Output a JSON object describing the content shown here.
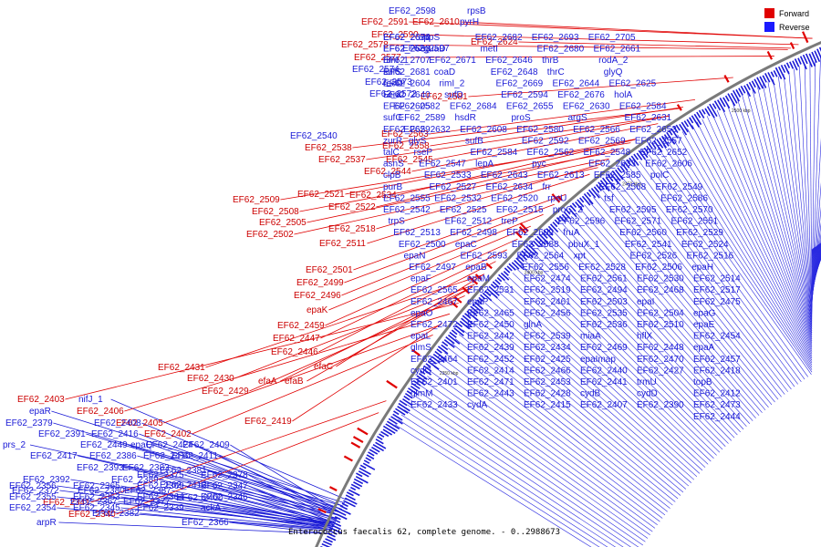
{
  "caption": "Enterococcus faecalis 62, complete genome. - 0..2988673",
  "legend": [
    {
      "label": "Forward",
      "color": "#e00000"
    },
    {
      "label": "Reverse",
      "color": "#1a1aff"
    }
  ],
  "ticks": [
    "2650 kbp",
    "2600 kbp",
    "2550 kbp",
    "2500 kbp",
    "2450 kbp",
    "2400 kbp",
    "2350 kbp"
  ],
  "forward_labels": [
    "EF62_2591",
    "EF62_2610",
    "EF62_2590",
    "EF62_2624",
    "EF62_2578",
    "EF62_2577",
    "EF62_2581",
    "EF62_2563",
    "EF62_2558",
    "EF62_2537",
    "EF62_2545",
    "EF62_2544",
    "EF62_2538",
    "EF62_2521",
    "EF62_2534",
    "EF62_2509",
    "EF62_2522",
    "EF62_2508",
    "EF62_2505",
    "EF62_2518",
    "EF62_2502",
    "EF62_2511",
    "EF62_2501",
    "EF62_2499",
    "EF62_2496",
    "epaK",
    "EF62_2459",
    "EF62_2447",
    "EF62_2446",
    "efaC",
    "EF62_2431",
    "EF62_2430",
    "efaA",
    "efaB",
    "EF62_2429",
    "EF62_2403",
    "EF62_2406",
    "EF62_2405",
    "EF62_2419",
    "EF62_2402",
    "EF62_2341",
    "EF62_2340"
  ],
  "reverse_labels": [
    "EF62_2598",
    "rpsB",
    "pyrH",
    "EF62_2597",
    "EF62_2574",
    "EF62_2573",
    "EF62_2572",
    "EF62_2540",
    "EF62_2705",
    "EF62_2693",
    "EF62_2682",
    "uppS",
    "EF62_2674",
    "EF62_2690",
    "EF62_2661",
    "EF62_2680",
    "metI",
    "guaD",
    "EF62_2660",
    "EF62_2683",
    "rodA_2",
    "thrB",
    "EF62_2646",
    "EF62_2671",
    "rimI_1",
    "EF62_2707",
    "glyQ",
    "thrC",
    "EF62_2648",
    "coaD",
    "EF62_2681",
    "sufS",
    "EF62_2625",
    "EF62_2644",
    "EF62_2669",
    "rimI_2",
    "EF62_2604",
    "recO",
    "holA",
    "EF62_2676",
    "EF62_2594",
    "sufD",
    "era",
    "EF62_2640",
    "EF62_2584",
    "EF62_2630",
    "EF62_2655",
    "EF62_2684",
    "EF62_2582",
    "EF62_2605",
    "EF62_2631",
    "argS",
    "proS",
    "hsdR",
    "EF62_2589",
    "sufC",
    "EF62_2653",
    "EF62_2566",
    "EF62_2580",
    "EF62_2608",
    "EF62_2632",
    "EF62_2659",
    "EF62_2557",
    "EF62_2569",
    "EF62_2592",
    "sufB",
    "glyS",
    "zurR",
    "EF62_2652",
    "EF62_2548",
    "EF62_2562",
    "EF62_2584",
    "rseP",
    "talC",
    "EF62_2606",
    "EF62_2633",
    "pyc",
    "lepA",
    "EF62_2547",
    "asnS",
    "polC",
    "EF62_2585",
    "EF62_2613",
    "EF62_2643",
    "EF62_2533",
    "clpB",
    "EF62_2549",
    "EF62_2568",
    "frr",
    "EF62_2634",
    "EF62_2527",
    "purB",
    "EF62_2586",
    "tsf",
    "rpsU",
    "EF62_2520",
    "EF62_2532",
    "EF62_2555",
    "EF62_2570",
    "EF62_2595",
    "proC_2",
    "EF62_2515",
    "EF62_2525",
    "EF62_2542",
    "EF62_2551",
    "EF62_2571",
    "EF62_2596",
    "treP",
    "EF62_2512",
    "trpS",
    "EF62_2529",
    "EF62_2560",
    "fruA",
    "EF62_2609",
    "EF62_2498",
    "EF62_2513",
    "EF62_2524",
    "EF62_2541",
    "pbuX_1",
    "EF62_2588",
    "epaC",
    "EF62_2500",
    "EF62_2516",
    "EF62_2526",
    "xpt",
    "EF62_2564",
    "EF62_2593",
    "epaN",
    "epaH",
    "EF62_2506",
    "EF62_2528",
    "EF62_2556",
    "epaB",
    "EF62_2497",
    "EF62_2514",
    "EF62_2530",
    "EF62_2561",
    "EF62_2474",
    "epaM",
    "epaF",
    "EF62_2517",
    "EF62_2468",
    "EF62_2494",
    "EF62_2519",
    "EF62_2531",
    "EF62_2565",
    "EF62_2475",
    "epaI",
    "EF62_2503",
    "EF62_2461",
    "epaP",
    "EF62_2467",
    "epaG",
    "EF62_2504",
    "EF62_2535",
    "EF62_2456",
    "EF62_2465",
    "epaO",
    "epaE",
    "EF62_2510",
    "EF62_2536",
    "glnA",
    "EF62_2450",
    "EF62_2472",
    "EF62_2454",
    "hflX",
    "miaA",
    "EF62_2539",
    "EF62_2442",
    "epaL",
    "epaA",
    "EF62_2448",
    "EF62_2469",
    "EF62_2434",
    "EF62_2439",
    "glmS",
    "EF62_2457",
    "EF62_2470",
    "epaImap",
    "EF62_2425",
    "EF62_2452",
    "EF62_2464",
    "EF62_2418",
    "EF62_2427",
    "EF62_2440",
    "EF62_2466",
    "EF62_2414",
    "cydC",
    "topB",
    "trmU",
    "EF62_2441",
    "EF62_2453",
    "EF62_2471",
    "EF62_2401",
    "EF62_2412",
    "cydD",
    "cydB",
    "EF62_2428",
    "EF62_2443",
    "glmM",
    "EF62_2473",
    "EF62_2390",
    "EF62_2407",
    "EF62_2415",
    "cydA",
    "EF62_2433",
    "EF62_2444",
    "nifJ_1",
    "epaR",
    "EF62_2379",
    "EF62_2391",
    "EF62_2408",
    "EF62_2416",
    "EF62_2424",
    "prs_2",
    "EF62_2449",
    "epaQ",
    "EF62_2409",
    "EF62_2417",
    "EF62_2386",
    "EF62_2410",
    "EF62_2411",
    "EF62_2393",
    "EF62_2383",
    "EF62_2381",
    "EF62_2392",
    "EF62_2389",
    "EF62_2413",
    "EF62_2372",
    "EF62_2380",
    "EF62_2387",
    "EF62_2400",
    "EF62_2367",
    "EF62_2377",
    "EF62_2382",
    "arpR",
    "EF62_2366",
    "EF62_2375",
    "EF62_2378",
    "EF62_2356",
    "EF62_2365",
    "EF62_2369",
    "EF62_2347",
    "EF62_2355",
    "EF62_2363",
    "EF62_2364",
    "EF62_2346",
    "EF62_2354",
    "EF62_2345",
    "EF62_2339",
    "ackA"
  ]
}
